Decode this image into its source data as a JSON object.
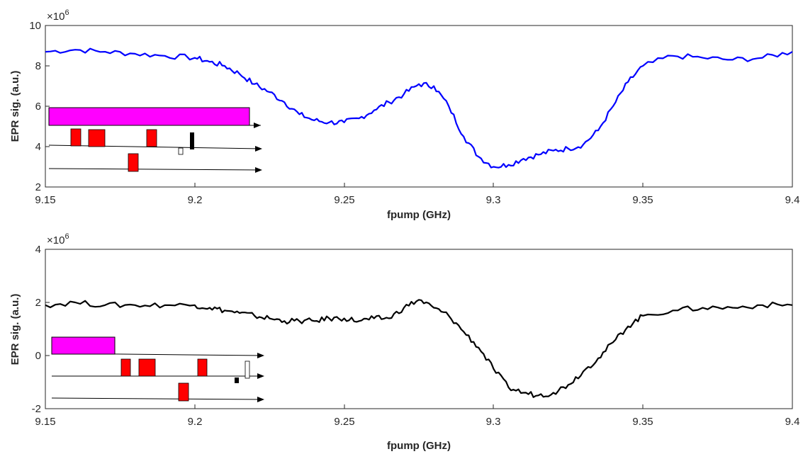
{
  "chart_data": [
    {
      "type": "line",
      "xlabel": "fpump (GHz)",
      "ylabel": "EPR sig. (a.u.)",
      "y_multiplier": "×10",
      "y_exponent": "6",
      "xlim": [
        9.15,
        9.4
      ],
      "ylim": [
        2,
        10
      ],
      "xticks": [
        "9.15",
        "9.2",
        "9.25",
        "9.3",
        "9.35",
        "9.4"
      ],
      "yticks": [
        "2",
        "4",
        "6",
        "8",
        "10"
      ],
      "grid": false,
      "color": "#0000ff",
      "series": [
        {
          "x": [
            9.15,
            9.16,
            9.17,
            9.18,
            9.19,
            9.2,
            9.205,
            9.21,
            9.215,
            9.22,
            9.225,
            9.23,
            9.235,
            9.24,
            9.245,
            9.25,
            9.255,
            9.26,
            9.265,
            9.27,
            9.275,
            9.28,
            9.285,
            9.29,
            9.295,
            9.3,
            9.305,
            9.31,
            9.315,
            9.32,
            9.325,
            9.33,
            9.335,
            9.34,
            9.345,
            9.35,
            9.36,
            9.37,
            9.38,
            9.39,
            9.4
          ],
          "values": [
            8.7,
            8.8,
            8.7,
            8.6,
            8.5,
            8.4,
            8.2,
            8.0,
            7.6,
            7.1,
            6.7,
            6.2,
            5.6,
            5.3,
            5.2,
            5.2,
            5.4,
            5.8,
            6.2,
            6.6,
            7.1,
            7.0,
            6.0,
            4.5,
            3.5,
            3.0,
            3.1,
            3.4,
            3.6,
            3.8,
            3.9,
            4.1,
            4.8,
            6.0,
            7.2,
            8.0,
            8.5,
            8.4,
            8.3,
            8.4,
            8.7
          ]
        }
      ]
    },
    {
      "type": "line",
      "xlabel": "fpump (GHz)",
      "ylabel": "EPR sig. (a.u.)",
      "y_multiplier": "×10",
      "y_exponent": "6",
      "xlim": [
        9.15,
        9.4
      ],
      "ylim": [
        -2,
        4
      ],
      "xticks": [
        "9.15",
        "9.2",
        "9.25",
        "9.3",
        "9.35",
        "9.4"
      ],
      "yticks": [
        "-2",
        "0",
        "2",
        "4"
      ],
      "grid": false,
      "color": "#000000",
      "series": [
        {
          "x": [
            9.15,
            9.16,
            9.17,
            9.18,
            9.19,
            9.2,
            9.205,
            9.21,
            9.215,
            9.22,
            9.225,
            9.23,
            9.235,
            9.24,
            9.245,
            9.25,
            9.255,
            9.26,
            9.265,
            9.27,
            9.275,
            9.28,
            9.285,
            9.29,
            9.295,
            9.3,
            9.305,
            9.31,
            9.315,
            9.32,
            9.325,
            9.33,
            9.335,
            9.34,
            9.345,
            9.35,
            9.36,
            9.37,
            9.38,
            9.39,
            9.4
          ],
          "values": [
            1.9,
            2.0,
            1.9,
            1.9,
            1.9,
            1.9,
            1.8,
            1.7,
            1.6,
            1.5,
            1.4,
            1.3,
            1.3,
            1.3,
            1.4,
            1.4,
            1.3,
            1.4,
            1.4,
            1.8,
            2.1,
            1.8,
            1.5,
            0.9,
            0.3,
            -0.5,
            -1.2,
            -1.4,
            -1.5,
            -1.4,
            -1.1,
            -0.6,
            -0.1,
            0.5,
            1.1,
            1.5,
            1.7,
            1.8,
            1.8,
            1.9,
            1.9
          ]
        }
      ]
    }
  ]
}
